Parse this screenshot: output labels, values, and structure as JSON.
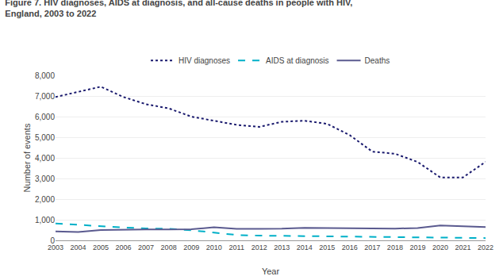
{
  "chart_data": {
    "type": "line",
    "title": "Figure 7. HIV diagnoses, AIDS at diagnosis, and all-cause deaths in people with HIV,\nEngland, 2003 to 2022",
    "x_label": "Year",
    "y_label": "Number of events",
    "x": [
      2003,
      2004,
      2005,
      2006,
      2007,
      2008,
      2009,
      2010,
      2011,
      2012,
      2013,
      2014,
      2015,
      2016,
      2017,
      2018,
      2019,
      2020,
      2021,
      2022
    ],
    "series": [
      {
        "name": "HIV diagnoses",
        "color": "#1a1a6e",
        "line_style": "dotted",
        "values": [
          6950,
          7200,
          7450,
          6950,
          6600,
          6400,
          6000,
          5800,
          5600,
          5500,
          5750,
          5800,
          5650,
          5100,
          4300,
          4200,
          3800,
          3050,
          3050,
          3805
        ]
      },
      {
        "name": "AIDS at diagnosis",
        "color": "#00b0c8",
        "line_style": "dashed",
        "values": [
          820,
          750,
          680,
          620,
          580,
          560,
          490,
          380,
          260,
          230,
          220,
          210,
          200,
          190,
          175,
          170,
          160,
          130,
          120,
          110
        ]
      },
      {
        "name": "Deaths",
        "color": "#5a5a8f",
        "line_style": "solid",
        "values": [
          430,
          400,
          500,
          520,
          530,
          530,
          540,
          630,
          560,
          560,
          570,
          610,
          600,
          580,
          590,
          570,
          600,
          720,
          680,
          640
        ]
      }
    ],
    "xlim": [
      2003,
      2022
    ],
    "xticks": [
      2003,
      2004,
      2005,
      2006,
      2007,
      2008,
      2009,
      2010,
      2011,
      2012,
      2013,
      2014,
      2015,
      2016,
      2017,
      2018,
      2019,
      2020,
      2021,
      2022
    ],
    "ylim": [
      0,
      8000
    ],
    "yticks": [
      0,
      {
        "value": 1000,
        "label": "1,000"
      },
      {
        "value": 2000,
        "label": "2,000"
      },
      {
        "value": 3000,
        "label": "3,000"
      },
      {
        "value": 4000,
        "label": "4,000"
      },
      {
        "value": 5000,
        "label": "5,000"
      },
      {
        "value": 6000,
        "label": "6,000"
      },
      {
        "value": 7000,
        "label": "7,000"
      },
      {
        "value": 8000,
        "label": "8,000"
      }
    ],
    "grid": true,
    "legend": "top"
  }
}
